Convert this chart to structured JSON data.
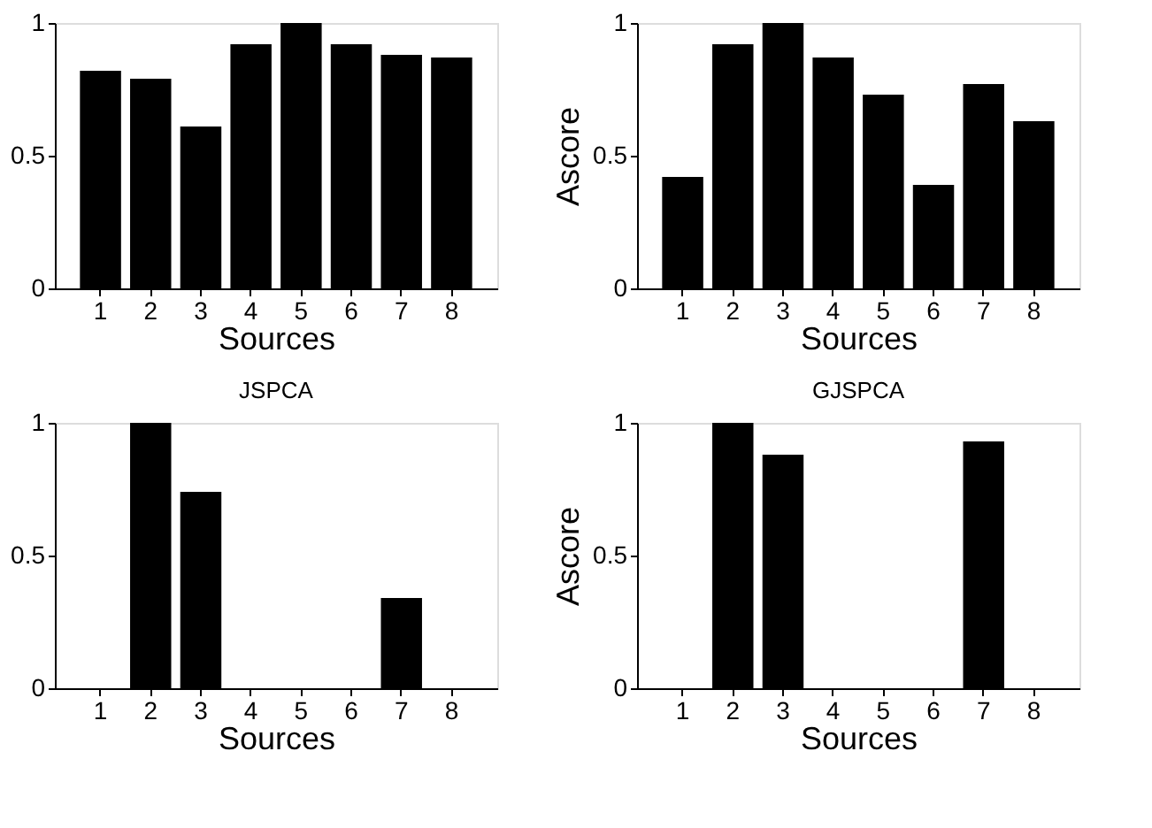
{
  "chart_data": [
    {
      "type": "bar",
      "categories": [
        "1",
        "2",
        "3",
        "4",
        "5",
        "6",
        "7",
        "8"
      ],
      "values": [
        0.82,
        0.79,
        0.61,
        0.92,
        1.0,
        0.92,
        0.88,
        0.87
      ],
      "color": "#000000",
      "xlabel": "Sources",
      "ylim": [
        0,
        1
      ],
      "yticks": [
        0,
        0.5,
        1
      ],
      "grid": false
    },
    {
      "type": "bar",
      "categories": [
        "1",
        "2",
        "3",
        "4",
        "5",
        "6",
        "7",
        "8"
      ],
      "values": [
        0.42,
        0.92,
        1.0,
        0.87,
        0.73,
        0.39,
        0.77,
        0.63
      ],
      "color": "#000000",
      "xlabel": "Sources",
      "ylabel": "Ascore",
      "ylim": [
        0,
        1
      ],
      "yticks": [
        0,
        0.5,
        1
      ],
      "grid": false
    },
    {
      "type": "bar",
      "title": "JSPCA",
      "categories": [
        "1",
        "2",
        "3",
        "4",
        "5",
        "6",
        "7",
        "8"
      ],
      "values": [
        0,
        1.0,
        0.74,
        0,
        0,
        0,
        0.34,
        0
      ],
      "color": "#000000",
      "xlabel": "Sources",
      "ylim": [
        0,
        1
      ],
      "yticks": [
        0,
        0.5,
        1
      ],
      "grid": false
    },
    {
      "type": "bar",
      "title": "GJSPCA",
      "categories": [
        "1",
        "2",
        "3",
        "4",
        "5",
        "6",
        "7",
        "8"
      ],
      "values": [
        0,
        1.0,
        0.88,
        0,
        0,
        0,
        0.93,
        0
      ],
      "color": "#000000",
      "xlabel": "Sources",
      "ylabel": "Ascore",
      "ylim": [
        0,
        1
      ],
      "yticks": [
        0,
        0.5,
        1
      ],
      "grid": false
    }
  ]
}
